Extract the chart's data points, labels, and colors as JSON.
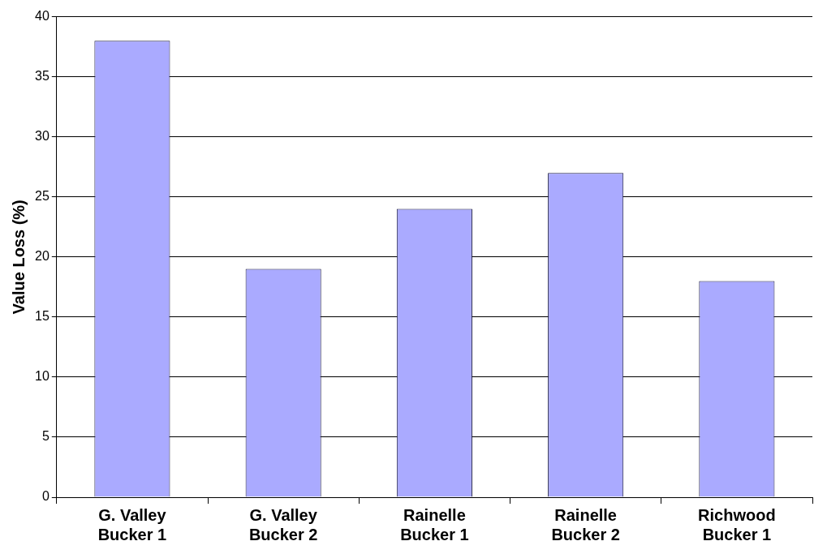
{
  "chart_data": {
    "type": "bar",
    "ylabel": "Value Loss (%)",
    "categories": [
      "G. Valley\nBucker 1",
      "G. Valley\nBucker 2",
      "Rainelle\nBucker 1",
      "Rainelle\nBucker 2",
      "Richwood\nBucker 1"
    ],
    "values": [
      38,
      19,
      24,
      27,
      18
    ],
    "color": "#aaaaff",
    "ylim": [
      0,
      40
    ],
    "yticks": [
      0,
      5,
      10,
      15,
      20,
      25,
      30,
      35,
      40
    ],
    "grid": "y",
    "legend": false
  }
}
